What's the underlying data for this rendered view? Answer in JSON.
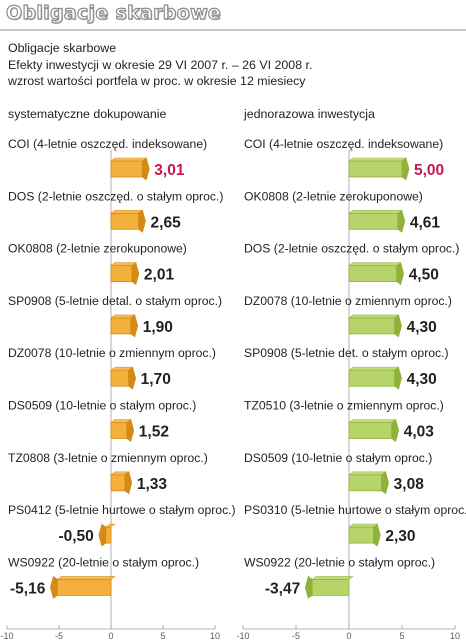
{
  "header": {
    "title": "Obligacje skarbowe"
  },
  "subtitle": {
    "line1": "Obligacje skarbowe",
    "line2": "Efekty inwestycji w okresie 29 VI 2007 r. – 26 VI 2008 r.",
    "line3": "wzrost wartości portfela w proc. w okresie 12 miesiecy"
  },
  "colors": {
    "left_bar": "#f3b13c",
    "left_bar_dark": "#d48a14",
    "right_bar": "#b7d46a",
    "right_bar_dark": "#8fb23a",
    "highlight_value": "#c8174b",
    "normal_value": "#231f20",
    "grid": "#9d9fa2"
  },
  "chart_data": [
    {
      "type": "bar",
      "orientation": "horizontal",
      "title": "systematyczne dokupowanie",
      "xlim": [
        -10,
        10
      ],
      "xticks": [
        "-10",
        "-5",
        "0",
        "5",
        "10"
      ],
      "categories": [
        "COI (4-letnie oszczęd. indeksowane)",
        "DOS (2-letnie oszczęd. o stałym oproc.)",
        "OK0808 (2-letnie zerokuponowe)",
        "SP0908 (5-letnie detal. o stałym oproc.)",
        "DZ0078 (10-letnie o zmiennym oproc.)",
        "DS0509 (10-letnie o stałym oproc.)",
        "TZ0808 (3-letnie o zmiennym oproc.)",
        "PS0412 (5-letnie hurtowe o stałym oproc.)",
        "WS0922 (20-letnie o stałym oproc.)"
      ],
      "values": [
        3.01,
        2.65,
        2.01,
        1.9,
        1.7,
        1.52,
        1.33,
        -0.5,
        -5.16
      ],
      "value_labels": [
        "3,01",
        "2,65",
        "2,01",
        "1,90",
        "1,70",
        "1,52",
        "1,33",
        "-0,50",
        "-5,16"
      ],
      "highlight_index": 0
    },
    {
      "type": "bar",
      "orientation": "horizontal",
      "title": "jednorazowa inwestycja",
      "xlim": [
        -10,
        10
      ],
      "xticks": [
        "-10",
        "-5",
        "0",
        "5",
        "10"
      ],
      "categories": [
        "COI (4-letnie oszczęd. indeksowane)",
        "OK0808 (2-letnie zerokuponowe)",
        "DOS (2-letnie oszczęd. o stałym oproc.)",
        "DZ0078 (10-letnie o zmiennym oproc.)",
        "SP0908 (5-letnie det. o stałym oproc.)",
        "TZ0510 (3-letnie o zmiennym oproc.)",
        "DS0509 (10-letnie o stałym oproc.)",
        "PS0310 (5-letnie hurtowe o stałym oproc.)",
        "WS0922 (20-letnie o stałym oproc.)"
      ],
      "values": [
        5.0,
        4.61,
        4.5,
        4.3,
        4.3,
        4.03,
        3.08,
        2.3,
        -3.47
      ],
      "value_labels": [
        "5,00",
        "4,61",
        "4,50",
        "4,30",
        "4,30",
        "4,03",
        "3,08",
        "2,30",
        "-3,47"
      ],
      "highlight_index": 0
    }
  ]
}
